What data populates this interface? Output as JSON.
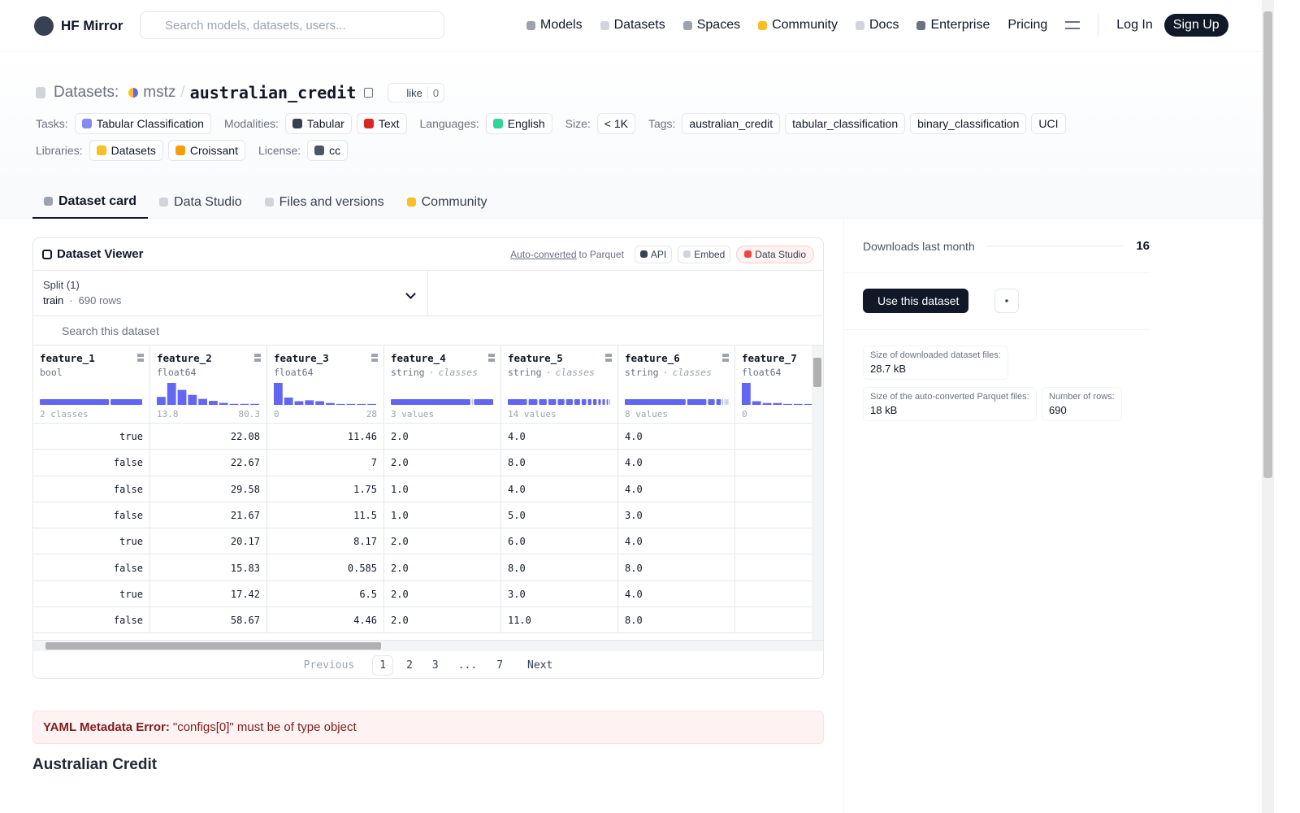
{
  "nav": {
    "brand": "HF Mirror",
    "search_placeholder": "Search models, datasets, users...",
    "links": [
      "Models",
      "Datasets",
      "Spaces",
      "Community",
      "Docs",
      "Enterprise",
      "Pricing"
    ],
    "login": "Log In",
    "signup": "Sign Up"
  },
  "header": {
    "prefix": "Datasets:",
    "owner": "mstz",
    "separator": "/",
    "name": "australian_credit",
    "like_label": "like",
    "like_count": 0,
    "meta_rows": [
      [
        {
          "label": "Tasks:",
          "chips": [
            "Tabular Classification"
          ]
        },
        {
          "label": "Modalities:",
          "chips": [
            "Tabular",
            "Text"
          ]
        },
        {
          "label": "Languages:",
          "chips": [
            "English"
          ]
        },
        {
          "label": "Size:",
          "chips": [
            "< 1K"
          ]
        },
        {
          "label": "Tags:",
          "chips": [
            "australian_credit",
            "tabular_classification",
            "binary_classification",
            "UCI"
          ]
        }
      ],
      [
        {
          "label": "Libraries:",
          "chips": [
            "Datasets",
            "Croissant"
          ]
        },
        {
          "label": "License:",
          "chips": [
            "cc"
          ]
        }
      ]
    ]
  },
  "tabs": [
    "Dataset card",
    "Data Studio",
    "Files and versions",
    "Community"
  ],
  "viewer": {
    "title": "Dataset Viewer",
    "auto_converted": "Auto-converted",
    "to_parquet": "to Parquet",
    "buttons": [
      "API",
      "Embed",
      "Data Studio"
    ],
    "split_label": "Split (1)",
    "split_name": "train",
    "dot": "·",
    "split_rows": "690 rows",
    "search_placeholder": "Search this dataset",
    "columns": [
      {
        "name": "feature_1",
        "dtype": "bool",
        "summary": "2 classes",
        "shares": [
          68,
          32
        ]
      },
      {
        "name": "feature_2",
        "dtype": "float64",
        "min": "13.8",
        "max": "80.3",
        "hist": [
          8,
          22,
          15,
          10,
          6,
          4,
          2,
          1,
          1,
          1
        ]
      },
      {
        "name": "feature_3",
        "dtype": "float64",
        "min": "0",
        "max": "28",
        "hist": [
          24,
          8,
          4,
          5,
          4,
          2,
          1,
          1,
          1,
          1
        ]
      },
      {
        "name": "feature_4",
        "dtype": "string",
        "kind": "classes",
        "summary": "3 values",
        "shares": [
          78,
          2,
          20
        ]
      },
      {
        "name": "feature_5",
        "dtype": "string",
        "kind": "classes",
        "summary": "14 values",
        "shares": [
          20,
          10,
          9,
          9,
          8,
          8,
          7,
          6,
          5,
          5,
          4,
          4,
          3,
          2
        ]
      },
      {
        "name": "feature_6",
        "dtype": "string",
        "kind": "classes",
        "summary": "8 values",
        "shares": [
          60,
          20,
          8,
          6,
          2,
          2,
          1,
          1
        ]
      },
      {
        "name": "feature_7",
        "dtype": "float64",
        "min": "0",
        "hist": [
          24,
          4,
          2,
          2,
          1,
          1,
          1,
          1
        ]
      }
    ],
    "rows": [
      [
        "true",
        "22.08",
        "11.46",
        "2.0",
        "4.0",
        "4.0"
      ],
      [
        "false",
        "22.67",
        "7",
        "2.0",
        "8.0",
        "4.0"
      ],
      [
        "false",
        "29.58",
        "1.75",
        "1.0",
        "4.0",
        "4.0"
      ],
      [
        "false",
        "21.67",
        "11.5",
        "1.0",
        "5.0",
        "3.0"
      ],
      [
        "true",
        "20.17",
        "8.17",
        "2.0",
        "6.0",
        "4.0"
      ],
      [
        "false",
        "15.83",
        "0.585",
        "2.0",
        "8.0",
        "8.0"
      ],
      [
        "true",
        "17.42",
        "6.5",
        "2.0",
        "3.0",
        "4.0"
      ],
      [
        "false",
        "58.67",
        "4.46",
        "2.0",
        "11.0",
        "8.0"
      ]
    ],
    "pagination": {
      "items": [
        "Previous",
        "1",
        "2",
        "3",
        "...",
        "7",
        "Next"
      ],
      "current_index": 1
    }
  },
  "error": {
    "label": "YAML Metadata Error:",
    "message": "\"configs[0]\" must be of type object"
  },
  "card_title": "Australian Credit",
  "sidebar": {
    "downloads_label": "Downloads last month",
    "downloads": 16,
    "use_button": "Use this dataset",
    "stats": [
      {
        "label": "Size of downloaded dataset files:",
        "value": "28.7 kB"
      },
      {
        "label": "Size of the auto-converted Parquet files:",
        "value": "18 kB"
      },
      {
        "label": "Number of rows:",
        "value": "690"
      }
    ]
  }
}
